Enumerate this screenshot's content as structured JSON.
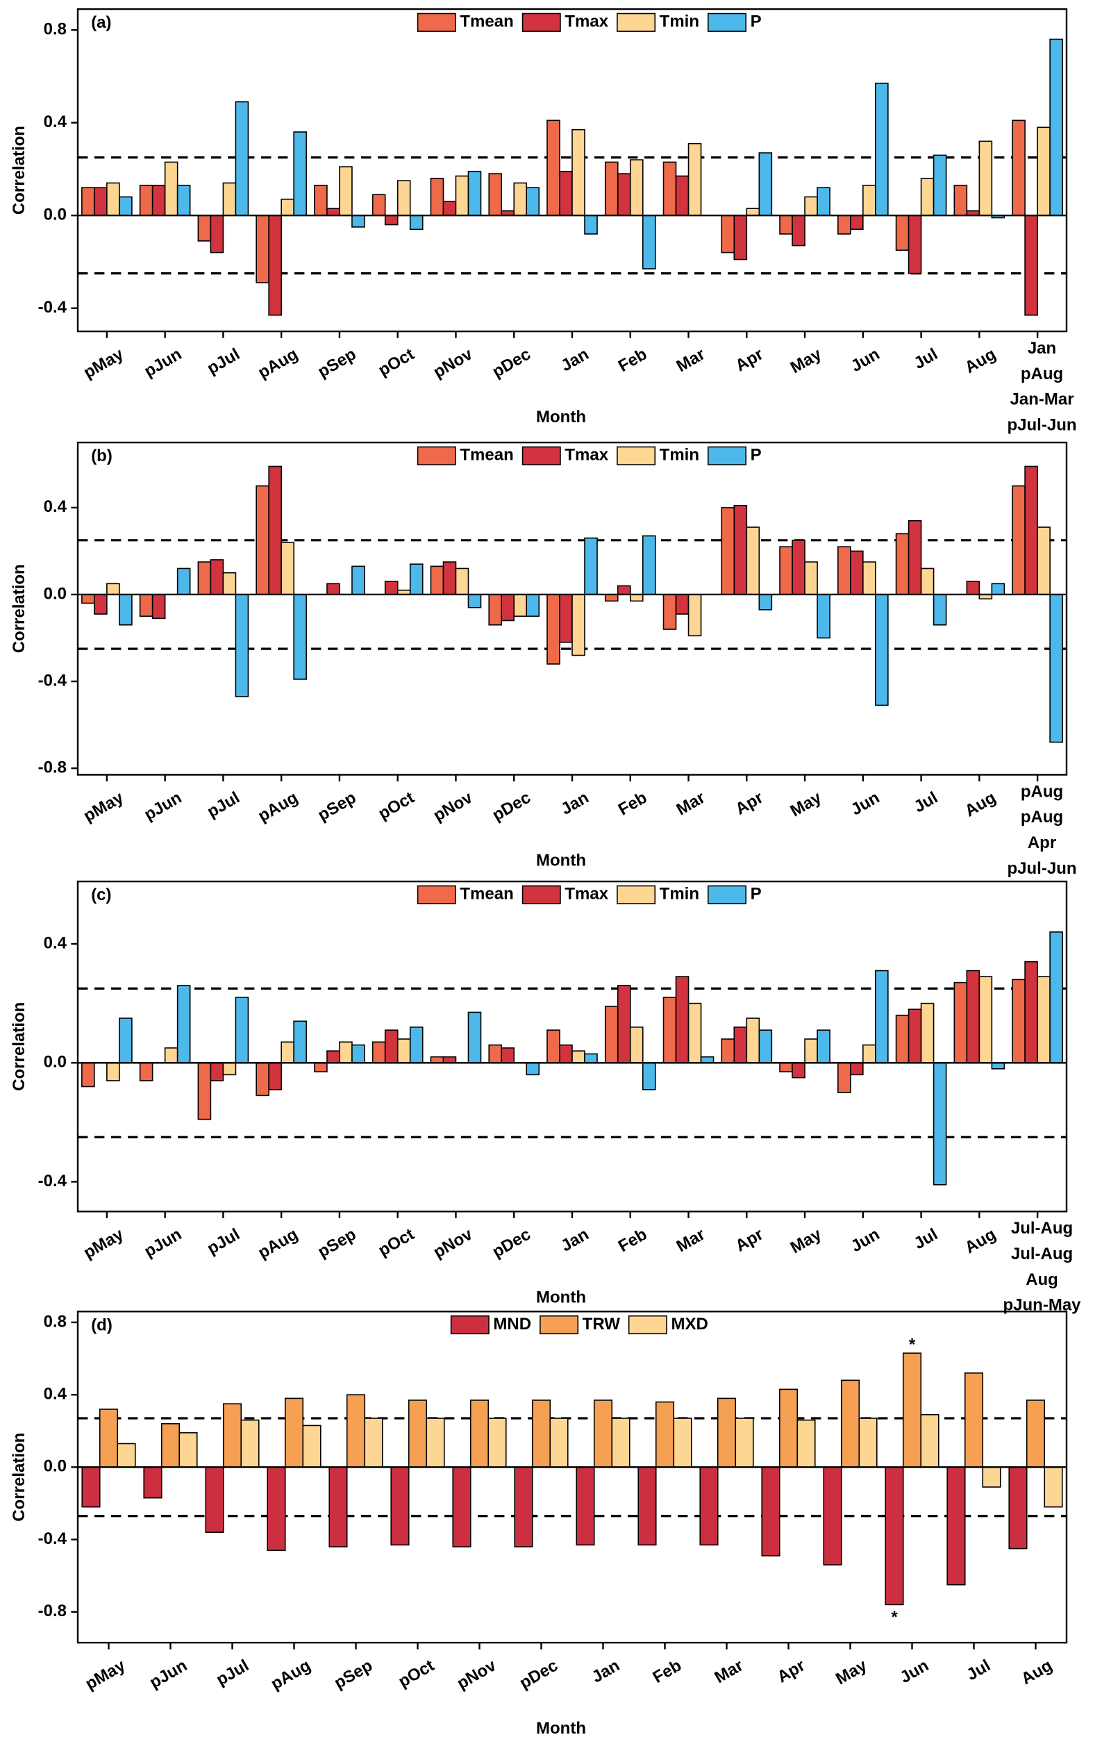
{
  "chart_data": [
    {
      "type": "bar",
      "panel_label": "(a)",
      "ylabel": "Correlation",
      "xlabel": "Month",
      "categories": [
        "pMay",
        "pJun",
        "pJul",
        "pAug",
        "pSep",
        "pOct",
        "pNov",
        "pDec",
        "Jan",
        "Feb",
        "Mar",
        "Apr",
        "May",
        "Jun",
        "Jul",
        "Aug",
        null
      ],
      "group_labels": [
        "Jan",
        "pAug",
        "Jan-Mar",
        "pJul-Jun"
      ],
      "series": [
        {
          "name": "Tmean",
          "color": "#ee6a4a",
          "values": [
            0.12,
            0.13,
            -0.11,
            -0.29,
            0.13,
            0.09,
            0.16,
            0.18,
            0.41,
            0.23,
            0.23,
            -0.16,
            -0.08,
            -0.08,
            -0.15,
            0.13,
            0.41
          ]
        },
        {
          "name": "Tmax",
          "color": "#d1343f",
          "values": [
            0.12,
            0.13,
            -0.16,
            -0.43,
            0.03,
            -0.04,
            0.06,
            0.02,
            0.19,
            0.18,
            0.17,
            -0.19,
            -0.13,
            -0.06,
            -0.25,
            0.02,
            -0.43
          ]
        },
        {
          "name": "Tmin",
          "color": "#fdd694",
          "values": [
            0.14,
            0.23,
            0.14,
            0.07,
            0.21,
            0.15,
            0.17,
            0.14,
            0.37,
            0.24,
            0.31,
            0.03,
            0.08,
            0.13,
            0.16,
            0.32,
            0.38
          ]
        },
        {
          "name": "P",
          "color": "#4db8ea",
          "values": [
            0.08,
            0.13,
            0.49,
            0.36,
            -0.05,
            -0.06,
            0.19,
            0.12,
            -0.08,
            -0.23,
            0.0,
            0.27,
            0.12,
            0.57,
            0.26,
            -0.01,
            0.76
          ]
        }
      ],
      "ylim": [
        -0.5,
        0.89
      ],
      "yticks": [
        -0.4,
        {
          "value": 0,
          "label": "0.0"
        },
        0.4,
        0.8
      ],
      "ref_lines": [
        0.25,
        -0.25
      ],
      "legend": "top"
    },
    {
      "type": "bar",
      "panel_label": "(b)",
      "ylabel": "Correlation",
      "xlabel": "Month",
      "categories": [
        "pMay",
        "pJun",
        "pJul",
        "pAug",
        "pSep",
        "pOct",
        "pNov",
        "pDec",
        "Jan",
        "Feb",
        "Mar",
        "Apr",
        "May",
        "Jun",
        "Jul",
        "Aug",
        null
      ],
      "group_labels": [
        "pAug",
        "pAug",
        "Apr",
        "pJul-Jun"
      ],
      "series": [
        {
          "name": "Tmean",
          "color": "#ee6a4a",
          "values": [
            -0.04,
            -0.1,
            0.15,
            0.5,
            0.0,
            0.0,
            0.13,
            -0.14,
            -0.32,
            -0.03,
            -0.16,
            0.4,
            0.22,
            0.22,
            0.28,
            0.0,
            0.5
          ]
        },
        {
          "name": "Tmax",
          "color": "#d1343f",
          "values": [
            -0.09,
            -0.11,
            0.16,
            0.59,
            0.05,
            0.06,
            0.15,
            -0.12,
            -0.22,
            0.04,
            -0.09,
            0.41,
            0.25,
            0.2,
            0.34,
            0.06,
            0.59
          ]
        },
        {
          "name": "Tmin",
          "color": "#fdd694",
          "values": [
            0.05,
            0.0,
            0.1,
            0.24,
            0.0,
            0.02,
            0.12,
            -0.1,
            -0.28,
            -0.03,
            -0.19,
            0.31,
            0.15,
            0.15,
            0.12,
            -0.02,
            0.31
          ]
        },
        {
          "name": "P",
          "color": "#4db8ea",
          "values": [
            -0.14,
            0.12,
            -0.47,
            -0.39,
            0.13,
            0.14,
            -0.06,
            -0.1,
            0.26,
            0.27,
            0.0,
            -0.07,
            -0.2,
            -0.51,
            -0.14,
            0.05,
            -0.68
          ]
        }
      ],
      "ylim": [
        -0.83,
        0.7
      ],
      "yticks": [
        -0.8,
        -0.4,
        {
          "value": 0,
          "label": "0.0"
        },
        0.4
      ],
      "ref_lines": [
        0.25,
        -0.25
      ],
      "legend": "top"
    },
    {
      "type": "bar",
      "panel_label": "(c)",
      "ylabel": "Correlation",
      "xlabel": "Month",
      "categories": [
        "pMay",
        "pJun",
        "pJul",
        "pAug",
        "pSep",
        "pOct",
        "pNov",
        "pDec",
        "Jan",
        "Feb",
        "Mar",
        "Apr",
        "May",
        "Jun",
        "Jul",
        "Aug",
        null
      ],
      "group_labels": [
        "Jul-Aug",
        "Jul-Aug",
        "Aug",
        "pJun-May"
      ],
      "series": [
        {
          "name": "Tmean",
          "color": "#ee6a4a",
          "values": [
            -0.08,
            -0.06,
            -0.19,
            -0.11,
            -0.03,
            0.07,
            0.02,
            0.06,
            0.11,
            0.19,
            0.22,
            0.08,
            -0.03,
            -0.1,
            0.16,
            0.27,
            0.28
          ]
        },
        {
          "name": "Tmax",
          "color": "#d1343f",
          "values": [
            0.0,
            0.0,
            -0.06,
            -0.09,
            0.04,
            0.11,
            0.02,
            0.05,
            0.06,
            0.26,
            0.29,
            0.12,
            -0.05,
            -0.04,
            0.18,
            0.31,
            0.34
          ]
        },
        {
          "name": "Tmin",
          "color": "#fdd694",
          "values": [
            -0.06,
            0.05,
            -0.04,
            0.07,
            0.07,
            0.08,
            0.0,
            0.0,
            0.04,
            0.12,
            0.2,
            0.15,
            0.08,
            0.06,
            0.2,
            0.29,
            0.29
          ]
        },
        {
          "name": "P",
          "color": "#4db8ea",
          "values": [
            0.15,
            0.26,
            0.22,
            0.14,
            0.06,
            0.12,
            0.17,
            -0.04,
            0.03,
            -0.09,
            0.02,
            0.11,
            0.11,
            0.31,
            -0.41,
            -0.02,
            0.44
          ]
        }
      ],
      "ylim": [
        -0.5,
        0.61
      ],
      "yticks": [
        -0.4,
        {
          "value": 0,
          "label": "0.0"
        },
        0.4
      ],
      "ref_lines": [
        0.25,
        -0.25
      ],
      "legend": "top"
    },
    {
      "type": "bar",
      "panel_label": "(d)",
      "ylabel": "Correlation",
      "xlabel": "Month",
      "categories": [
        "pMay",
        "pJun",
        "pJul",
        "pAug",
        "pSep",
        "pOct",
        "pNov",
        "pDec",
        "Jan",
        "Feb",
        "Mar",
        "Apr",
        "May",
        "Jun",
        "Jul",
        "Aug"
      ],
      "series": [
        {
          "name": "MND",
          "color": "#cc3040",
          "values": [
            -0.22,
            -0.17,
            -0.36,
            -0.46,
            -0.44,
            -0.43,
            -0.44,
            -0.44,
            -0.43,
            -0.43,
            -0.43,
            -0.49,
            -0.54,
            -0.76,
            -0.65,
            -0.45
          ]
        },
        {
          "name": "TRW",
          "color": "#f5a053",
          "values": [
            0.32,
            0.24,
            0.35,
            0.38,
            0.4,
            0.37,
            0.37,
            0.37,
            0.37,
            0.36,
            0.38,
            0.43,
            0.48,
            0.63,
            0.52,
            0.37
          ]
        },
        {
          "name": "MXD",
          "color": "#fdd694",
          "values": [
            0.13,
            0.19,
            0.26,
            0.23,
            0.27,
            0.27,
            0.27,
            0.27,
            0.27,
            0.27,
            0.27,
            0.26,
            0.27,
            0.29,
            -0.11,
            -0.22
          ]
        }
      ],
      "annotations": [
        {
          "text": "*",
          "series": 1,
          "index": 13
        },
        {
          "text": "*",
          "series": 0,
          "index": 13
        }
      ],
      "ylim": [
        -0.97,
        0.86
      ],
      "yticks": [
        -0.8,
        -0.4,
        {
          "value": 0,
          "label": "0.0"
        },
        0.4,
        0.8
      ],
      "ref_lines": [
        0.27,
        -0.27
      ],
      "legend": "top"
    }
  ]
}
